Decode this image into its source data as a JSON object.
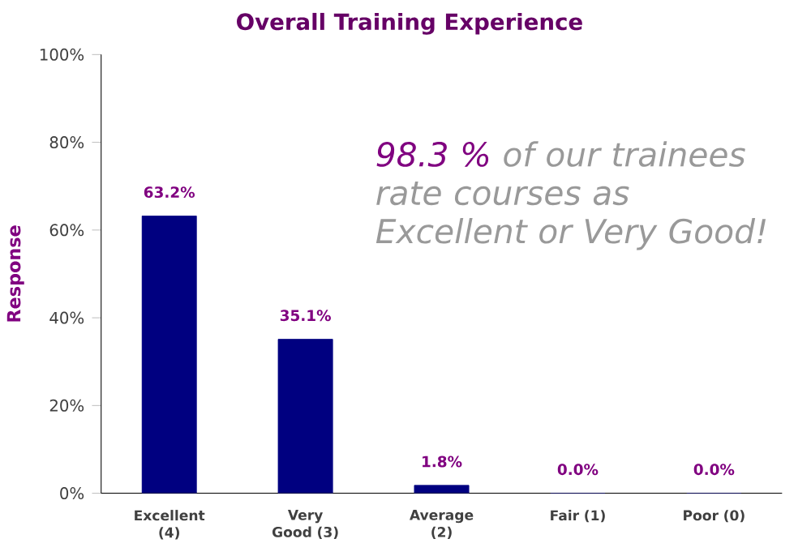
{
  "chart_data": {
    "type": "bar",
    "title": "Overall Training Experience",
    "ylabel": "Response",
    "categories": [
      "Excellent (4)",
      "Very Good (3)",
      "Average (2)",
      "Fair (1)",
      "Poor (0)"
    ],
    "values": [
      63.2,
      35.1,
      1.8,
      0.0,
      0.0
    ],
    "value_labels": [
      "63.2%",
      "35.1%",
      "1.8%",
      "0.0%",
      "0.0%"
    ],
    "color": "#000080",
    "ylim": [
      0,
      100
    ],
    "yticks": [
      {
        "value": 0,
        "label": "0%"
      },
      {
        "value": 20,
        "label": "20%"
      },
      {
        "value": 40,
        "label": "40%"
      },
      {
        "value": 60,
        "label": "60%"
      },
      {
        "value": 80,
        "label": "80%"
      },
      {
        "value": 100,
        "label": "100%"
      }
    ],
    "grid": false,
    "annotations": [
      "98.3 %",
      "of our trainees rate courses as Excellent or Very Good!"
    ]
  }
}
